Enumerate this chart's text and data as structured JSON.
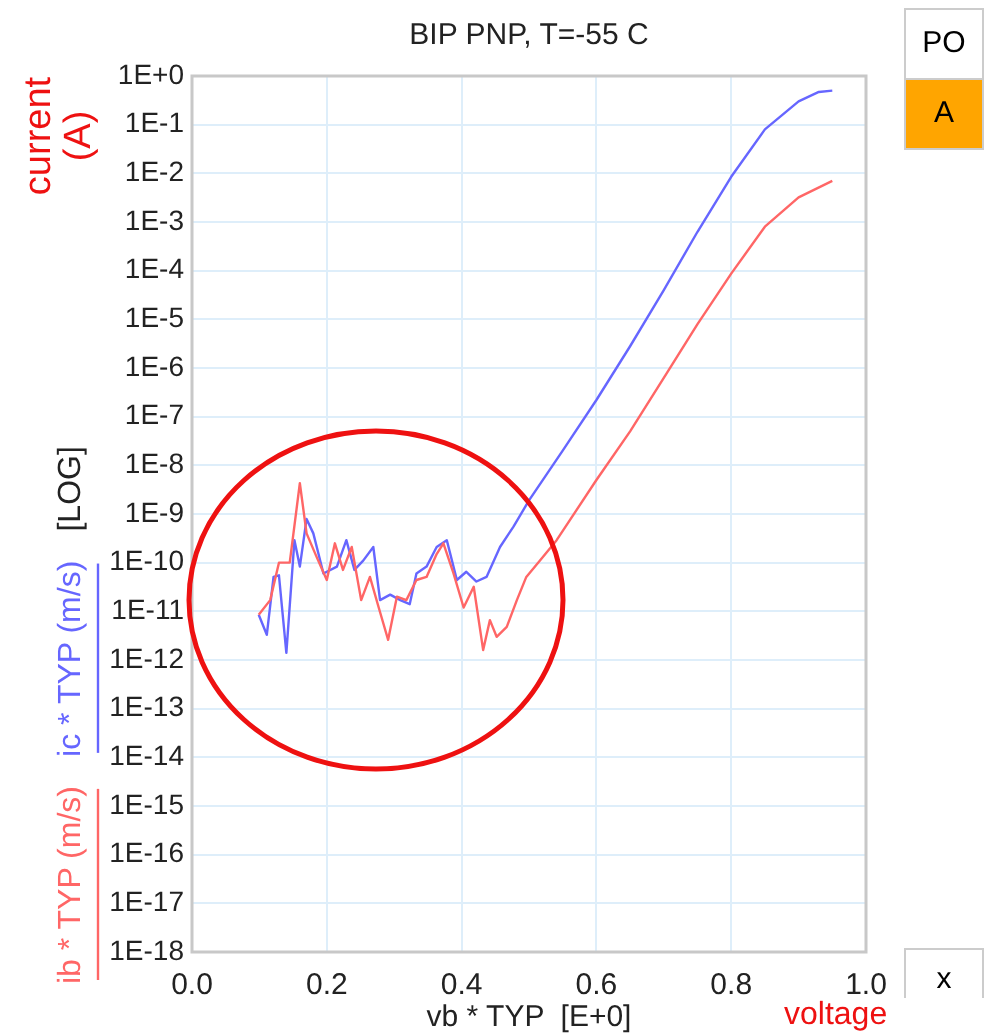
{
  "chart_data": {
    "type": "line",
    "title": "BIP PNP, T=-55 C",
    "xlabel": "vb * TYP  [E+0]",
    "ylabel": "[LOG]",
    "annotations": [
      "current (A)",
      "voltage",
      "PO",
      "A",
      "x"
    ],
    "log": "y",
    "grid": true,
    "legend": false,
    "marker": "none",
    "line_style": "solid",
    "xlim": [
      0,
      1
    ],
    "xticks": [
      {
        "value": 0,
        "label": "0.0"
      },
      {
        "value": 0.2,
        "label": "0.2"
      },
      {
        "value": 0.4,
        "label": "0.4"
      },
      {
        "value": 0.6,
        "label": "0.6"
      },
      {
        "value": 0.8,
        "label": "0.8"
      },
      {
        "value": 1,
        "label": "1.0"
      }
    ],
    "ylim": [
      1e-18,
      1
    ],
    "yticks": [
      {
        "value": 1,
        "label": "1E+0"
      },
      {
        "value": 0.1,
        "label": "1E-1"
      },
      {
        "value": 0.01,
        "label": "1E-2"
      },
      {
        "value": 0.001,
        "label": "1E-3"
      },
      {
        "value": 0.0001,
        "label": "1E-4"
      },
      {
        "value": 1e-05,
        "label": "1E-5"
      },
      {
        "value": 1e-06,
        "label": "1E-6"
      },
      {
        "value": 1e-07,
        "label": "1E-7"
      },
      {
        "value": 1e-08,
        "label": "1E-8"
      },
      {
        "value": 1e-09,
        "label": "1E-9"
      },
      {
        "value": 1e-10,
        "label": "1E-10"
      },
      {
        "value": 1e-11,
        "label": "1E-11"
      },
      {
        "value": 1e-12,
        "label": "1E-12"
      },
      {
        "value": 1e-13,
        "label": "1E-13"
      },
      {
        "value": 1e-14,
        "label": "1E-14"
      },
      {
        "value": 1e-15,
        "label": "1E-15"
      },
      {
        "value": 1e-16,
        "label": "1E-16"
      },
      {
        "value": 1e-17,
        "label": "1E-17"
      },
      {
        "value": 1e-18,
        "label": "1E-18"
      }
    ],
    "series": [
      {
        "name": "ib * TYP (m/s)",
        "color": "#ff6666",
        "x": [
          0.099,
          0.116,
          0.129,
          0.145,
          0.16,
          0.17,
          0.185,
          0.2,
          0.212,
          0.224,
          0.237,
          0.251,
          0.264,
          0.277,
          0.291,
          0.304,
          0.318,
          0.333,
          0.348,
          0.363,
          0.373,
          0.388,
          0.403,
          0.418,
          0.432,
          0.442,
          0.452,
          0.467,
          0.482,
          0.496,
          0.516,
          0.541,
          0.6,
          0.65,
          0.7,
          0.75,
          0.8,
          0.85,
          0.9,
          0.95
        ],
        "values": [
          8.5e-12,
          1.7e-11,
          1e-10,
          1e-10,
          4.3e-09,
          4e-10,
          1.3e-10,
          4.4e-11,
          2.5e-10,
          7.1e-11,
          2.1e-10,
          1.7e-11,
          5.1e-11,
          1.2e-11,
          2.6e-12,
          2e-11,
          1.7e-11,
          4.4e-11,
          5.1e-11,
          1.5e-10,
          2.5e-10,
          6e-11,
          1.2e-11,
          3.2e-11,
          1.6e-12,
          6.6e-12,
          3e-12,
          4.8e-12,
          1.7e-11,
          5.1e-11,
          1.1e-10,
          2.9e-10,
          5e-09,
          5e-08,
          6.3e-07,
          8e-06,
          8.7e-05,
          0.0008,
          0.0032,
          0.007
        ]
      },
      {
        "name": "ic * TYP (m/s)",
        "color": "#6666ff",
        "x": [
          0.099,
          0.111,
          0.121,
          0.129,
          0.14,
          0.152,
          0.16,
          0.17,
          0.18,
          0.195,
          0.215,
          0.229,
          0.241,
          0.254,
          0.269,
          0.279,
          0.294,
          0.309,
          0.323,
          0.333,
          0.348,
          0.363,
          0.378,
          0.393,
          0.407,
          0.422,
          0.437,
          0.457,
          0.477,
          0.5,
          0.55,
          0.6,
          0.65,
          0.7,
          0.75,
          0.8,
          0.85,
          0.9,
          0.93,
          0.95
        ],
        "values": [
          8.5e-12,
          3.3e-12,
          5.1e-11,
          5.5e-11,
          1.4e-12,
          2.9e-10,
          8.3e-11,
          7.9e-10,
          4e-10,
          6e-11,
          8.3e-11,
          2.9e-10,
          7.1e-11,
          1.1e-10,
          2.1e-10,
          1.7e-11,
          2.2e-11,
          1.7e-11,
          1.4e-11,
          6e-11,
          8.3e-11,
          2.1e-10,
          2.9e-10,
          4.4e-11,
          6.5e-11,
          4.1e-11,
          5.1e-11,
          2.1e-10,
          5.5e-10,
          1.9e-09,
          2e-08,
          2.2e-07,
          2.8e-06,
          4e-05,
          0.00063,
          0.0085,
          0.08,
          0.3,
          0.47,
          0.5
        ]
      }
    ]
  }
}
